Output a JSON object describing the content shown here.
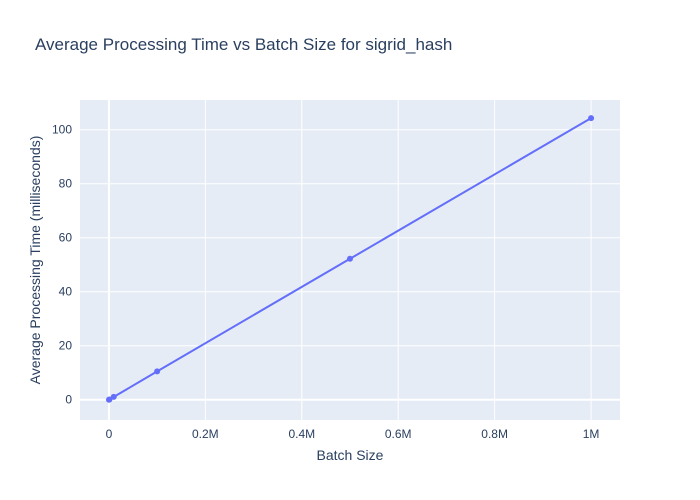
{
  "chart_data": {
    "type": "line",
    "title": "Average Processing Time vs Batch Size for sigrid_hash",
    "xlabel": "Batch Size",
    "ylabel": "Average Processing Time (milliseconds)",
    "xlim": [
      -60000,
      1060000
    ],
    "ylim": [
      -7.5,
      111
    ],
    "x_ticks": [
      0,
      200000,
      400000,
      600000,
      800000,
      1000000
    ],
    "x_tick_labels": [
      "0",
      "0.2M",
      "0.4M",
      "0.6M",
      "0.8M",
      "1M"
    ],
    "y_ticks": [
      0,
      20,
      40,
      60,
      80,
      100
    ],
    "y_tick_labels": [
      "0",
      "20",
      "40",
      "60",
      "80",
      "100"
    ],
    "grid": true,
    "legend": false,
    "colors": {
      "plot_bg": "#e5ecf6",
      "grid": "#ffffff",
      "line": "#636efa",
      "text": "#2a3f5f"
    },
    "series": [
      {
        "x": [
          100,
          1000,
          10000,
          100000,
          500000,
          1000000
        ],
        "y": [
          0.01,
          0.1,
          1.05,
          10.5,
          52.2,
          104.3
        ]
      }
    ]
  }
}
